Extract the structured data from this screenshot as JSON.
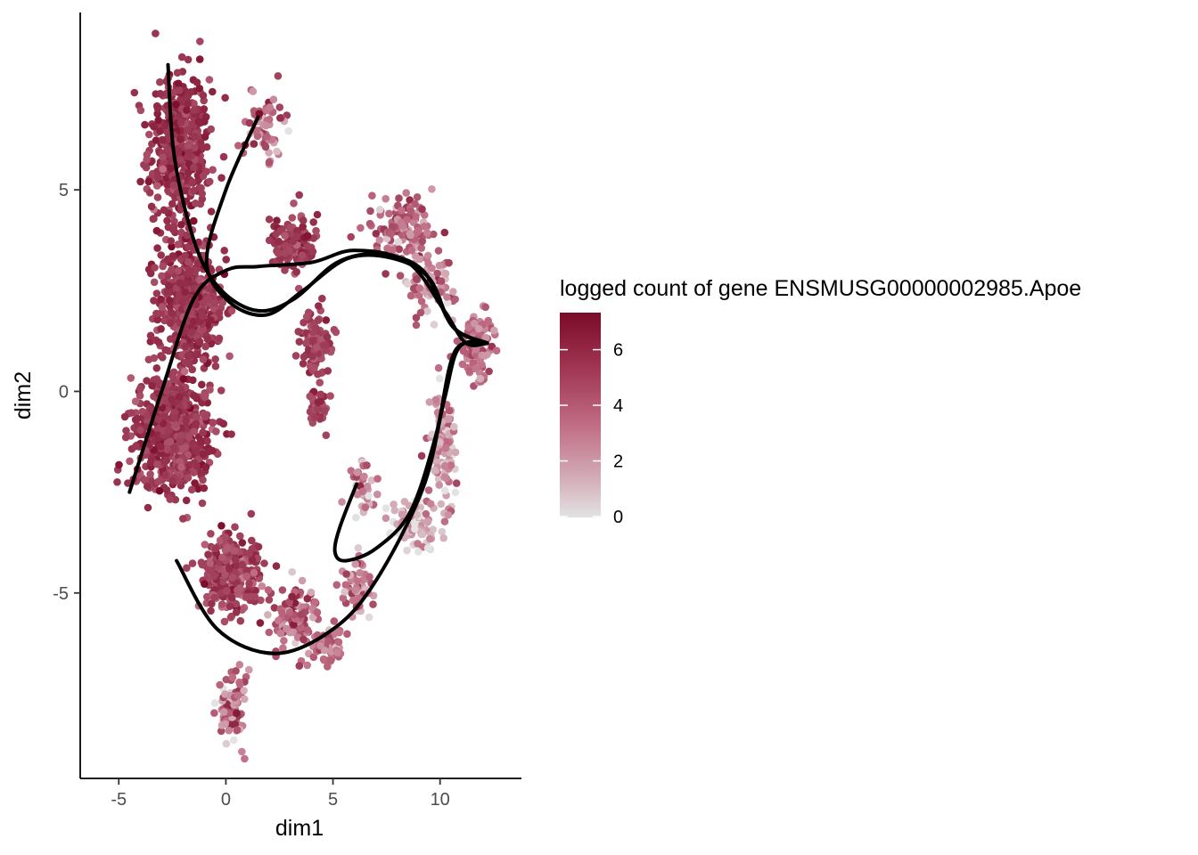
{
  "chart_data": {
    "type": "scatter",
    "xlabel": "dim1",
    "ylabel": "dim2",
    "xlim": [
      -6.8,
      13.8
    ],
    "ylim": [
      -9.6,
      9.4
    ],
    "x_ticks": [
      -5,
      0,
      5,
      10
    ],
    "y_ticks": [
      -5,
      0,
      5
    ],
    "x_tick_labels": [
      "-5",
      "0",
      "5",
      "10"
    ],
    "y_tick_labels": [
      "-5",
      "0",
      "5"
    ],
    "grid": false,
    "legend": {
      "title": "logged count of gene ENSMUSG00000002985.Apoe",
      "placement": "right",
      "range": [
        0,
        7.3
      ],
      "ticks": [
        0,
        2,
        4,
        6
      ],
      "tick_labels": [
        "0",
        "2",
        "4",
        "6"
      ],
      "low_color": "#e3e3e3",
      "high_color": "#7a0a28"
    },
    "clusters": [
      {
        "name": "left-band-top",
        "center": [
          -2.2,
          6.0
        ],
        "spread": [
          1.2,
          1.6
        ],
        "count": 450,
        "value_mean": 5.6,
        "value_sd": 0.6
      },
      {
        "name": "left-band-mid",
        "center": [
          -1.6,
          2.2
        ],
        "spread": [
          1.3,
          1.4
        ],
        "count": 500,
        "value_mean": 5.5,
        "value_sd": 0.6
      },
      {
        "name": "left-band-low",
        "center": [
          -2.5,
          -1.0
        ],
        "spread": [
          1.6,
          1.2
        ],
        "count": 550,
        "value_mean": 5.4,
        "value_sd": 0.7
      },
      {
        "name": "upper-branch",
        "center": [
          1.8,
          6.6
        ],
        "spread": [
          0.8,
          0.7
        ],
        "count": 70,
        "value_mean": 3.2,
        "value_sd": 1.4
      },
      {
        "name": "middle-top",
        "center": [
          3.2,
          3.6
        ],
        "spread": [
          0.9,
          0.7
        ],
        "count": 120,
        "value_mean": 5.3,
        "value_sd": 0.7
      },
      {
        "name": "middle-patch",
        "center": [
          4.2,
          1.2
        ],
        "spread": [
          0.7,
          0.6
        ],
        "count": 100,
        "value_mean": 5.0,
        "value_sd": 0.7
      },
      {
        "name": "middle-tail",
        "center": [
          4.3,
          -0.3
        ],
        "spread": [
          0.4,
          0.6
        ],
        "count": 40,
        "value_mean": 5.0,
        "value_sd": 0.7
      },
      {
        "name": "top-right-arc",
        "center": [
          8.3,
          4.0
        ],
        "spread": [
          1.2,
          0.6
        ],
        "count": 120,
        "value_mean": 3.5,
        "value_sd": 1.2
      },
      {
        "name": "right-arc-upper",
        "center": [
          9.5,
          2.6
        ],
        "spread": [
          1.0,
          0.6
        ],
        "count": 80,
        "value_mean": 2.8,
        "value_sd": 1.4
      },
      {
        "name": "right-lobe",
        "center": [
          11.7,
          1.2
        ],
        "spread": [
          0.6,
          0.6
        ],
        "count": 120,
        "value_mean": 3.3,
        "value_sd": 0.8
      },
      {
        "name": "right-side",
        "center": [
          10.2,
          -1.4
        ],
        "spread": [
          0.5,
          1.1
        ],
        "count": 110,
        "value_mean": 1.8,
        "value_sd": 1.3
      },
      {
        "name": "lower-right-arc",
        "center": [
          8.8,
          -3.3
        ],
        "spread": [
          0.9,
          0.5
        ],
        "count": 90,
        "value_mean": 1.5,
        "value_sd": 1.2
      },
      {
        "name": "lower-arc-tail",
        "center": [
          6.2,
          -4.9
        ],
        "spread": [
          0.7,
          0.7
        ],
        "count": 60,
        "value_mean": 2.5,
        "value_sd": 1.5
      },
      {
        "name": "hook",
        "center": [
          6.5,
          -2.3
        ],
        "spread": [
          0.5,
          0.5
        ],
        "count": 40,
        "value_mean": 2.0,
        "value_sd": 1.5
      },
      {
        "name": "lower-left",
        "center": [
          0.2,
          -4.5
        ],
        "spread": [
          1.1,
          0.8
        ],
        "count": 300,
        "value_mean": 5.0,
        "value_sd": 0.8
      },
      {
        "name": "lower-mid",
        "center": [
          3.2,
          -5.6
        ],
        "spread": [
          1.0,
          0.8
        ],
        "count": 100,
        "value_mean": 4.0,
        "value_sd": 1.3
      },
      {
        "name": "lower-blob",
        "center": [
          4.8,
          -6.3
        ],
        "spread": [
          0.6,
          0.4
        ],
        "count": 60,
        "value_mean": 3.3,
        "value_sd": 0.8
      },
      {
        "name": "bottom-tail",
        "center": [
          0.3,
          -7.8
        ],
        "spread": [
          0.5,
          0.8
        ],
        "count": 90,
        "value_mean": 3.4,
        "value_sd": 1.6
      }
    ],
    "trajectories": [
      {
        "name": "curve-1",
        "points": [
          [
            -2.7,
            8.1
          ],
          [
            -2.4,
            5.8
          ],
          [
            -1.4,
            3.6
          ],
          [
            -0.2,
            2.5
          ],
          [
            1.5,
            2.0
          ],
          [
            3.2,
            2.3
          ],
          [
            5.2,
            3.2
          ],
          [
            7.2,
            3.4
          ],
          [
            9.2,
            3.0
          ],
          [
            10.6,
            1.6
          ],
          [
            12.2,
            1.2
          ]
        ]
      },
      {
        "name": "curve-2",
        "points": [
          [
            1.5,
            6.8
          ],
          [
            0.0,
            5.0
          ],
          [
            -0.9,
            3.2
          ],
          [
            0.2,
            2.2
          ],
          [
            1.9,
            1.9
          ],
          [
            3.6,
            2.5
          ],
          [
            5.7,
            3.3
          ],
          [
            7.8,
            3.3
          ],
          [
            9.5,
            2.8
          ],
          [
            10.6,
            1.6
          ],
          [
            12.2,
            1.2
          ]
        ]
      },
      {
        "name": "curve-3",
        "points": [
          [
            -4.5,
            -2.5
          ],
          [
            -3.0,
            0.0
          ],
          [
            -1.5,
            2.3
          ],
          [
            0.0,
            3.0
          ],
          [
            1.5,
            3.1
          ],
          [
            4.0,
            3.2
          ],
          [
            6.0,
            3.5
          ],
          [
            8.5,
            3.2
          ],
          [
            10.2,
            2.0
          ],
          [
            11.2,
            1.2
          ],
          [
            12.2,
            1.2
          ]
        ]
      },
      {
        "name": "curve-4",
        "points": [
          [
            -2.3,
            -4.2
          ],
          [
            -0.4,
            -5.9
          ],
          [
            2.3,
            -6.5
          ],
          [
            5.0,
            -5.9
          ],
          [
            7.0,
            -4.7
          ],
          [
            9.2,
            -2.4
          ],
          [
            10.2,
            -0.2
          ],
          [
            10.9,
            1.1
          ],
          [
            12.2,
            1.2
          ]
        ]
      },
      {
        "name": "curve-5",
        "points": [
          [
            6.1,
            -2.3
          ],
          [
            5.3,
            -3.4
          ],
          [
            5.1,
            -4.0
          ],
          [
            5.6,
            -4.2
          ],
          [
            7.0,
            -3.9
          ],
          [
            8.6,
            -3.0
          ],
          [
            9.8,
            -1.1
          ],
          [
            10.7,
            1.0
          ],
          [
            12.2,
            1.2
          ]
        ]
      }
    ]
  }
}
